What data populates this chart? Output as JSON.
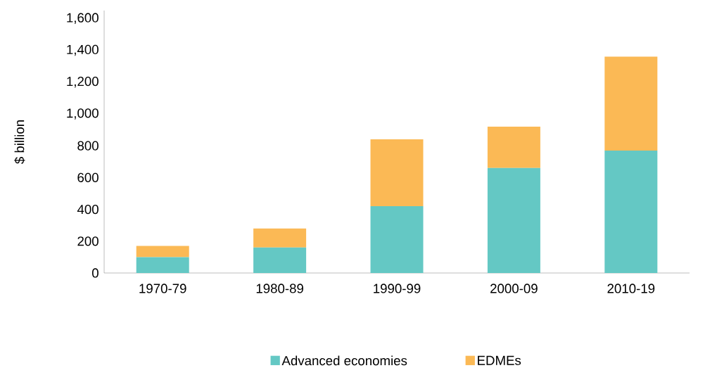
{
  "chart_data": {
    "type": "bar",
    "stacked": true,
    "ylabel": "$ billion",
    "categories": [
      "1970-79",
      "1980-89",
      "1990-99",
      "2000-09",
      "2010-19"
    ],
    "series": [
      {
        "name": "Advanced economies",
        "color": "#64c8c4",
        "values": [
          100,
          160,
          420,
          660,
          770
        ]
      },
      {
        "name": "EDMEs",
        "color": "#fbb955",
        "values": [
          70,
          120,
          420,
          260,
          590
        ]
      }
    ],
    "ylim": [
      0,
      1650
    ],
    "yticks": [
      0,
      200,
      400,
      600,
      800,
      {
        "value": 1000,
        "label": "1,000"
      },
      {
        "value": 1200,
        "label": "1,200"
      },
      {
        "value": 1400,
        "label": "1,400"
      },
      {
        "value": 1600,
        "label": "1,600"
      }
    ],
    "grid": false,
    "legend": "bottom"
  }
}
